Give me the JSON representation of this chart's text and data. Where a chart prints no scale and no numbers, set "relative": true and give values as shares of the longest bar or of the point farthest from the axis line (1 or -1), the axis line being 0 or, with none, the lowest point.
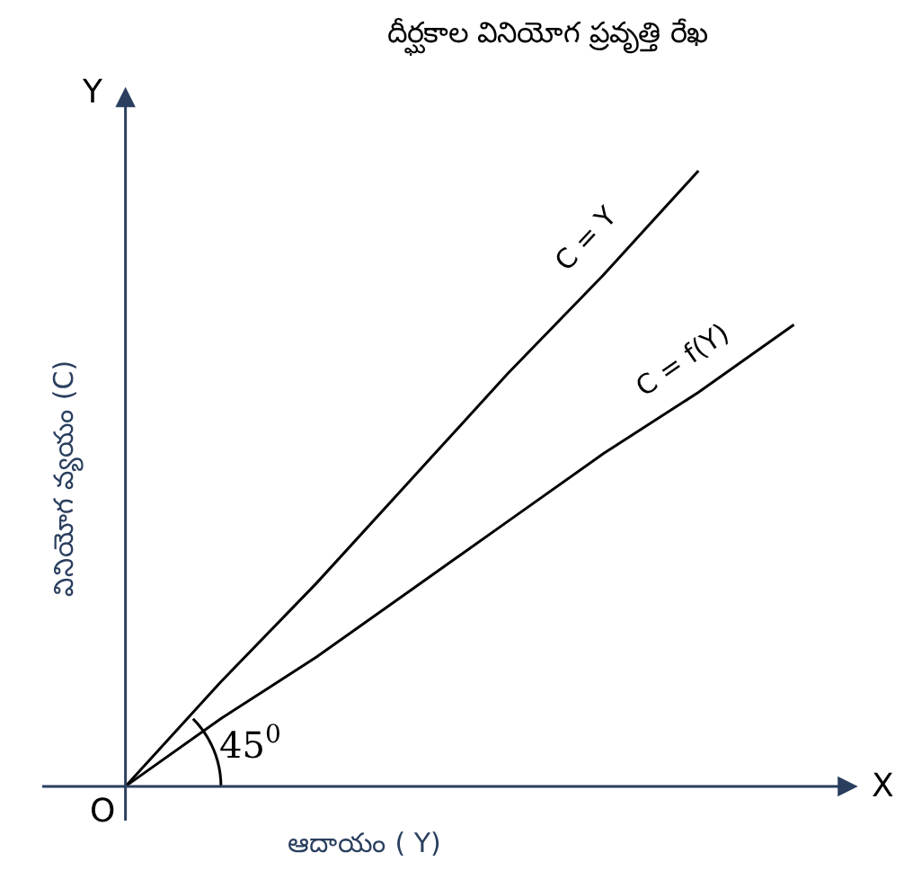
{
  "chart_data": {
    "type": "line",
    "title": "దీర్ఘకాల వినియోగ ప్రవృత్తి రేఖ",
    "xlabel": "ఆదాయం ( Y)",
    "ylabel": "వినియోగ వ్యయం (C)",
    "relative": true,
    "marker": "none",
    "line_style": "solid",
    "grid": false,
    "legend": false,
    "categories": [
      null,
      null,
      null,
      null,
      null,
      null,
      null,
      null
    ],
    "series": [
      {
        "name": "C = Y",
        "color": "#000000",
        "values": [
          0,
          0.17,
          0.33,
          0.5,
          0.67,
          0.83,
          1.0,
          null
        ]
      },
      {
        "name": "C = f(Y)",
        "color": "#000000",
        "values": [
          0,
          0.11,
          0.21,
          0.32,
          0.43,
          0.54,
          0.64,
          0.75
        ]
      }
    ],
    "annotations": [
      "Y",
      "X",
      "O",
      "45$^{0}$"
    ]
  }
}
